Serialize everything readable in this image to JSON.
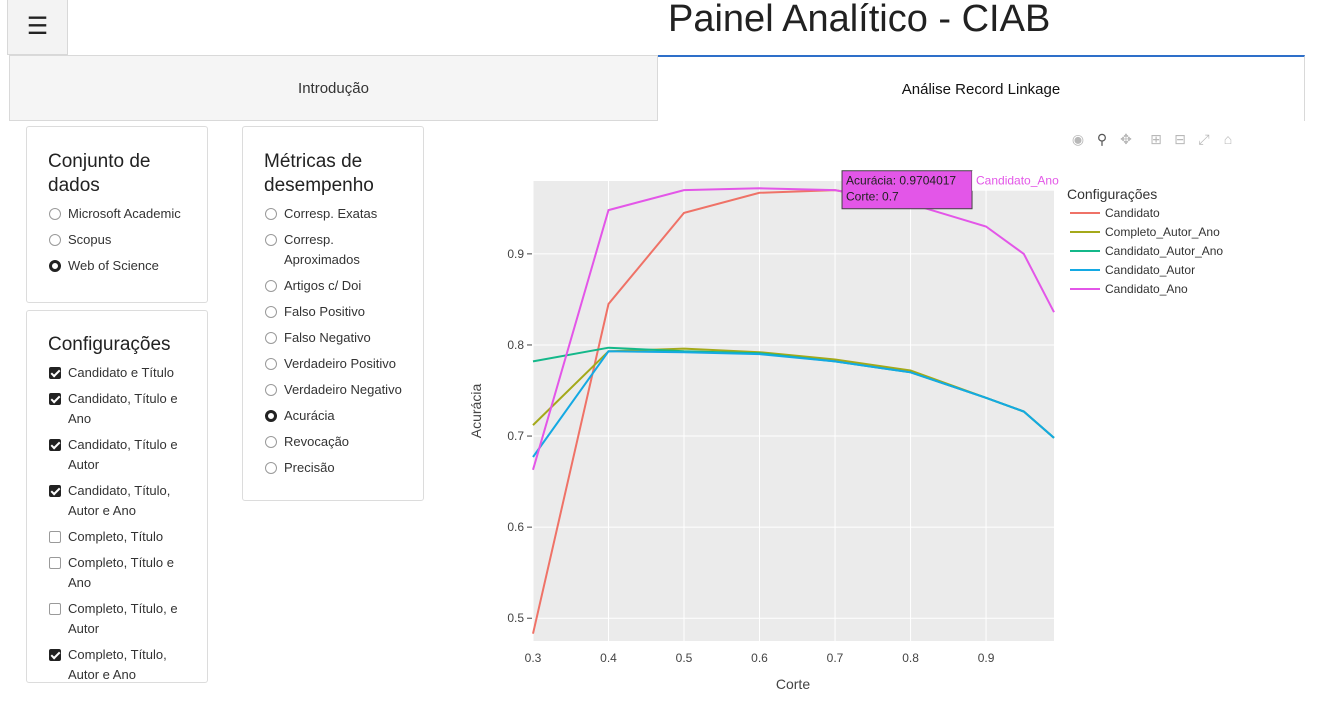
{
  "header": {
    "menu_icon": "hamburger-icon",
    "title": "Painel Analítico - CIAB"
  },
  "tabs": [
    {
      "label": "Introdução",
      "active": false
    },
    {
      "label": "Análise Record Linkage",
      "active": true
    }
  ],
  "dataset_panel": {
    "title": "Conjunto de dados",
    "title_line1": "Conjunto de",
    "title_line2": "dados",
    "options": [
      "Microsoft Academic",
      "Scopus",
      "Web of Science"
    ],
    "selected": "Web of Science"
  },
  "metrics_panel": {
    "title": "Métricas de desempenho",
    "title_line1": "Métricas de",
    "title_line2": "desempenho",
    "options": [
      {
        "lines": [
          "Corresp. Exatas"
        ]
      },
      {
        "lines": [
          "Corresp.",
          "Aproximados"
        ]
      },
      {
        "lines": [
          "Artigos c/ Doi"
        ]
      },
      {
        "lines": [
          "Falso Positivo"
        ]
      },
      {
        "lines": [
          "Falso Negativo"
        ]
      },
      {
        "lines": [
          "Verdadeiro Positivo"
        ]
      },
      {
        "lines": [
          "Verdadeiro Negativo"
        ]
      },
      {
        "lines": [
          "Acurácia"
        ]
      },
      {
        "lines": [
          "Revocação"
        ]
      },
      {
        "lines": [
          "Precisão"
        ]
      }
    ],
    "selected": "Acurácia"
  },
  "config_panel": {
    "title": "Configurações",
    "options": [
      {
        "lines": [
          "Candidato e Título"
        ],
        "checked": true
      },
      {
        "lines": [
          "Candidato, Título e",
          "Ano"
        ],
        "checked": true
      },
      {
        "lines": [
          "Candidato, Título e",
          "Autor"
        ],
        "checked": true
      },
      {
        "lines": [
          "Candidato, Título,",
          "Autor e Ano"
        ],
        "checked": true
      },
      {
        "lines": [
          "Completo, Título"
        ],
        "checked": false
      },
      {
        "lines": [
          "Completo, Título e",
          "Ano"
        ],
        "checked": false
      },
      {
        "lines": [
          "Completo, Título, e",
          "Autor"
        ],
        "checked": false
      },
      {
        "lines": [
          "Completo, Título,",
          "Autor e Ano"
        ],
        "checked": true
      }
    ]
  },
  "modebar": [
    "camera-icon",
    "zoom-icon",
    "pan-icon",
    "zoom-in-icon",
    "zoom-out-icon",
    "autoscale-icon",
    "home-icon"
  ],
  "chart_data": {
    "type": "line",
    "xlabel": "Corte",
    "ylabel": "Acurácia",
    "xlim": [
      0.3,
      0.99
    ],
    "ylim": [
      0.475,
      0.98
    ],
    "xticks": [
      0.3,
      0.4,
      0.5,
      0.6,
      0.7,
      0.8,
      0.9
    ],
    "yticks": [
      0.5,
      0.6,
      0.7,
      0.8,
      0.9
    ],
    "grid": true,
    "legend_title": "Configurações",
    "legend_position": "top-right",
    "x": [
      0.3,
      0.4,
      0.5,
      0.6,
      0.7,
      0.8,
      0.9,
      0.95,
      0.99
    ],
    "series": [
      {
        "name": "Candidato",
        "color": "#ef7267",
        "values": [
          0.483,
          0.845,
          0.945,
          0.967,
          0.97,
          0.955,
          null,
          null,
          null
        ]
      },
      {
        "name": "Completo_Autor_Ano",
        "color": "#a4a91a",
        "values": [
          0.712,
          0.793,
          0.796,
          0.792,
          0.784,
          0.772,
          0.742,
          0.727,
          0.698
        ]
      },
      {
        "name": "Candidato_Autor_Ano",
        "color": "#14b88a",
        "values": [
          0.782,
          0.797,
          0.793,
          0.791,
          0.782,
          0.77,
          0.742,
          0.727,
          0.698
        ]
      },
      {
        "name": "Candidato_Autor",
        "color": "#14a9e3",
        "values": [
          0.677,
          0.793,
          0.792,
          0.79,
          0.782,
          0.77,
          0.742,
          0.727,
          0.698
        ]
      },
      {
        "name": "Candidato_Ano",
        "color": "#e356e8",
        "values": [
          0.663,
          0.948,
          0.97,
          0.972,
          0.97,
          0.955,
          0.93,
          0.9,
          0.836
        ]
      }
    ],
    "tooltip": {
      "line1": "Acurácia: 0.9704017",
      "line2": "Corte: 0.7",
      "series": "Candidato_Ano",
      "x": 0.7,
      "y": 0.9704017
    }
  }
}
